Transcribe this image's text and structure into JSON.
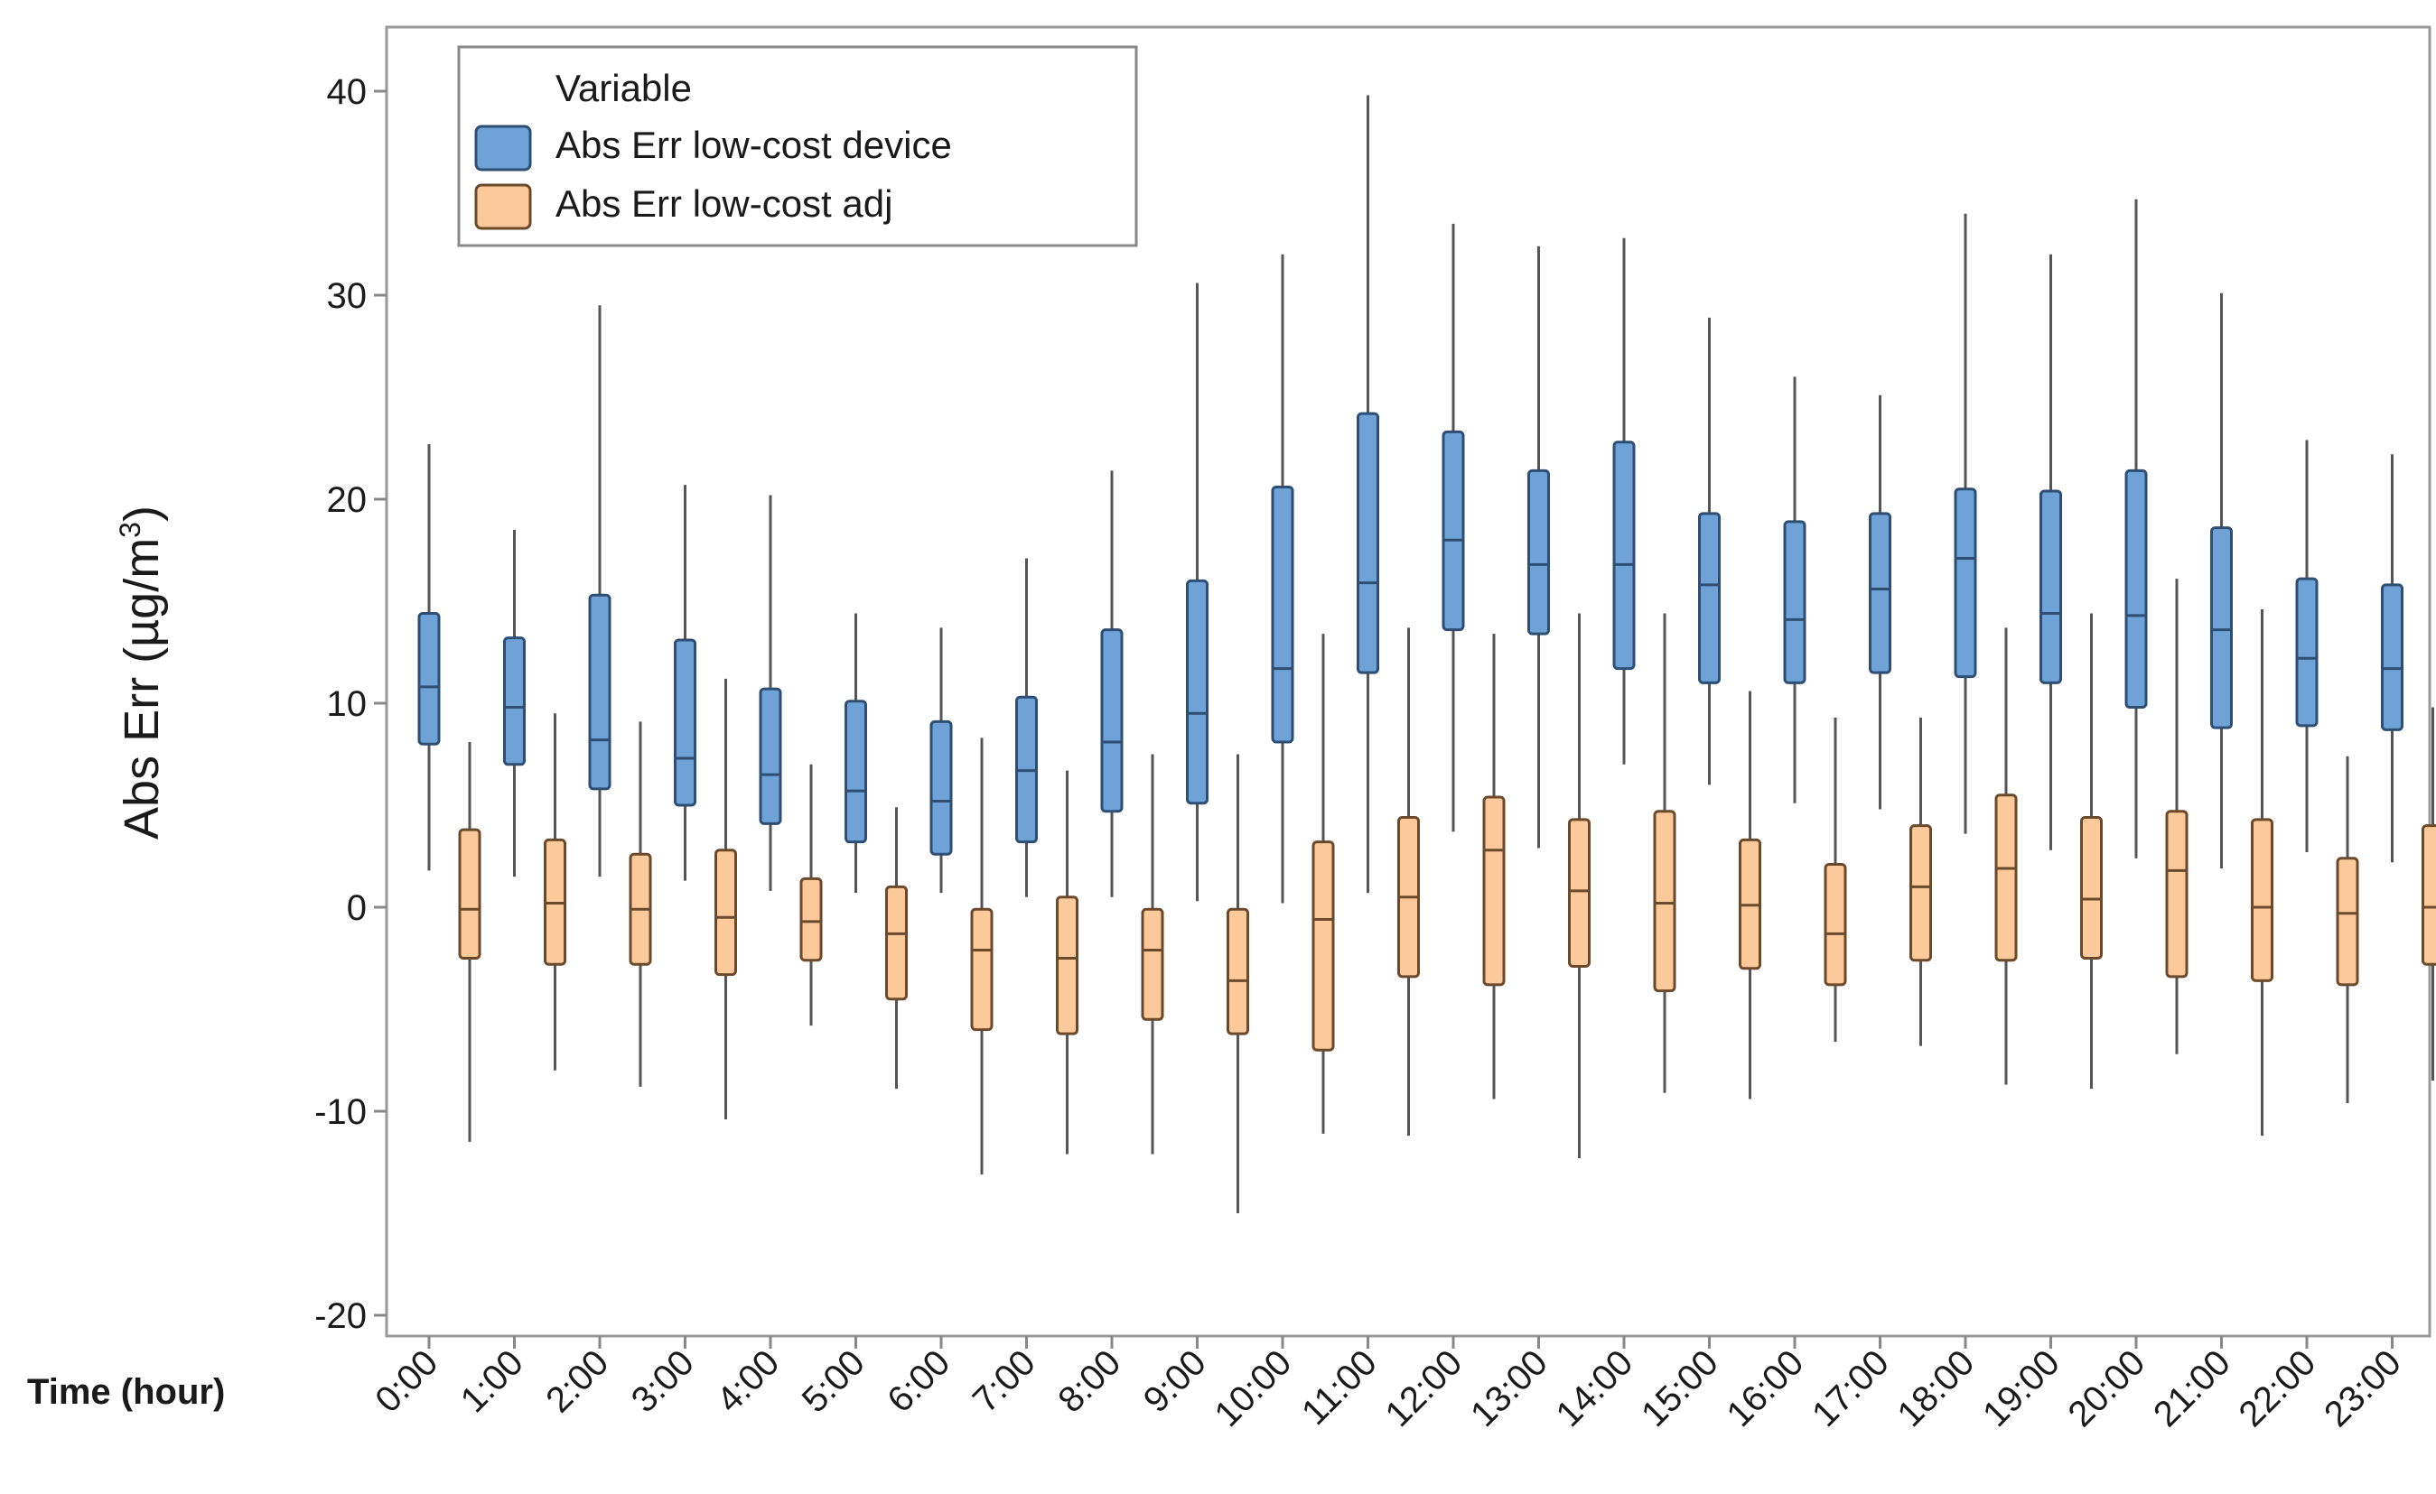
{
  "chart_data": {
    "type": "boxplot",
    "title": "",
    "xlabel": "Time (hour)",
    "ylabel": "Abs Err (µg/m³)",
    "ylabel_base": "Abs Err (µg/m",
    "ylabel_sup": "3",
    "ylabel_close": ")",
    "ylim": [
      -21,
      42
    ],
    "yticks": [
      "40",
      "30",
      "20",
      "10",
      "0",
      "-10",
      "-20"
    ],
    "ytick_values": [
      40,
      30,
      20,
      10,
      0,
      -10,
      -20
    ],
    "categories": [
      "0:00",
      "1:00",
      "2:00",
      "3:00",
      "4:00",
      "5:00",
      "6:00",
      "7:00",
      "8:00",
      "9:00",
      "10:00",
      "11:00",
      "12:00",
      "13:00",
      "14:00",
      "15:00",
      "16:00",
      "17:00",
      "18:00",
      "19:00",
      "20:00",
      "21:00",
      "22:00",
      "23:00"
    ],
    "legend": {
      "title": "Variable",
      "position": "top-left"
    },
    "colors": {
      "device_fill": "#6fa3d8",
      "device_edge": "#2e4f73",
      "adj_fill": "#fcc99b",
      "adj_edge": "#6b4a2c",
      "whisker": "#555555",
      "axis": "#888888"
    },
    "series": [
      {
        "name": "Abs Err low-cost device",
        "key": "device",
        "boxes": [
          {
            "min": 1.8,
            "q1": 8.0,
            "median": 10.8,
            "q3": 14.4,
            "max": 22.7
          },
          {
            "min": 1.5,
            "q1": 7.0,
            "median": 9.8,
            "q3": 13.2,
            "max": 18.5
          },
          {
            "min": 1.5,
            "q1": 5.8,
            "median": 8.2,
            "q3": 15.3,
            "max": 29.5
          },
          {
            "min": 1.3,
            "q1": 5.0,
            "median": 7.3,
            "q3": 13.1,
            "max": 20.7
          },
          {
            "min": 0.8,
            "q1": 4.1,
            "median": 6.5,
            "q3": 10.7,
            "max": 20.2
          },
          {
            "min": 0.7,
            "q1": 3.2,
            "median": 5.7,
            "q3": 10.1,
            "max": 14.4
          },
          {
            "min": 0.7,
            "q1": 2.6,
            "median": 5.2,
            "q3": 9.1,
            "max": 13.7
          },
          {
            "min": 0.5,
            "q1": 3.2,
            "median": 6.7,
            "q3": 10.3,
            "max": 17.1
          },
          {
            "min": 0.5,
            "q1": 4.7,
            "median": 8.1,
            "q3": 13.6,
            "max": 21.4
          },
          {
            "min": 0.3,
            "q1": 5.1,
            "median": 9.5,
            "q3": 16.0,
            "max": 30.6
          },
          {
            "min": 0.2,
            "q1": 8.1,
            "median": 11.7,
            "q3": 20.6,
            "max": 32.0
          },
          {
            "min": 0.7,
            "q1": 11.5,
            "median": 15.9,
            "q3": 24.2,
            "max": 39.8
          },
          {
            "min": 3.7,
            "q1": 13.6,
            "median": 18.0,
            "q3": 23.3,
            "max": 33.5
          },
          {
            "min": 2.9,
            "q1": 13.4,
            "median": 16.8,
            "q3": 21.4,
            "max": 32.4
          },
          {
            "min": 7.0,
            "q1": 11.7,
            "median": 16.8,
            "q3": 22.8,
            "max": 32.8
          },
          {
            "min": 6.0,
            "q1": 11.0,
            "median": 15.8,
            "q3": 19.3,
            "max": 28.9
          },
          {
            "min": 5.1,
            "q1": 11.0,
            "median": 14.1,
            "q3": 18.9,
            "max": 26.0
          },
          {
            "min": 4.8,
            "q1": 11.5,
            "median": 15.6,
            "q3": 19.3,
            "max": 25.1
          },
          {
            "min": 3.6,
            "q1": 11.3,
            "median": 17.1,
            "q3": 20.5,
            "max": 34.0
          },
          {
            "min": 2.8,
            "q1": 11.0,
            "median": 14.4,
            "q3": 20.4,
            "max": 32.0
          },
          {
            "min": 2.4,
            "q1": 9.8,
            "median": 14.3,
            "q3": 21.4,
            "max": 34.7
          },
          {
            "min": 1.9,
            "q1": 8.8,
            "median": 13.6,
            "q3": 18.6,
            "max": 30.1
          },
          {
            "min": 2.7,
            "q1": 8.9,
            "median": 12.2,
            "q3": 16.1,
            "max": 22.9
          },
          {
            "min": 2.2,
            "q1": 8.7,
            "median": 11.7,
            "q3": 15.8,
            "max": 22.2
          }
        ]
      },
      {
        "name": "Abs Err low-cost adj",
        "key": "adj",
        "boxes": [
          {
            "min": -11.5,
            "q1": -2.5,
            "median": -0.1,
            "q3": 3.8,
            "max": 8.1
          },
          {
            "min": -8.0,
            "q1": -2.8,
            "median": 0.2,
            "q3": 3.3,
            "max": 9.5
          },
          {
            "min": -8.8,
            "q1": -2.8,
            "median": -0.1,
            "q3": 2.6,
            "max": 9.1
          },
          {
            "min": -10.4,
            "q1": -3.3,
            "median": -0.5,
            "q3": 2.8,
            "max": 11.2
          },
          {
            "min": -5.8,
            "q1": -2.6,
            "median": -0.7,
            "q3": 1.4,
            "max": 7.0
          },
          {
            "min": -8.9,
            "q1": -4.5,
            "median": -1.3,
            "q3": 1.0,
            "max": 4.9
          },
          {
            "min": -13.1,
            "q1": -6.0,
            "median": -2.1,
            "q3": -0.1,
            "max": 8.3
          },
          {
            "min": -12.1,
            "q1": -6.2,
            "median": -2.5,
            "q3": 0.5,
            "max": 6.7
          },
          {
            "min": -12.1,
            "q1": -5.5,
            "median": -2.1,
            "q3": -0.1,
            "max": 7.5
          },
          {
            "min": -15.0,
            "q1": -6.2,
            "median": -3.6,
            "q3": -0.1,
            "max": 7.5
          },
          {
            "min": -11.1,
            "q1": -7.0,
            "median": -0.6,
            "q3": 3.2,
            "max": 13.4
          },
          {
            "min": -11.2,
            "q1": -3.4,
            "median": 0.5,
            "q3": 4.4,
            "max": 13.7
          },
          {
            "min": -9.4,
            "q1": -3.8,
            "median": 2.8,
            "q3": 5.4,
            "max": 13.4
          },
          {
            "min": -12.3,
            "q1": -2.9,
            "median": 0.8,
            "q3": 4.3,
            "max": 14.4
          },
          {
            "min": -9.1,
            "q1": -4.1,
            "median": 0.2,
            "q3": 4.7,
            "max": 14.4
          },
          {
            "min": -9.4,
            "q1": -3.0,
            "median": 0.1,
            "q3": 3.3,
            "max": 10.6
          },
          {
            "min": -6.6,
            "q1": -3.8,
            "median": -1.3,
            "q3": 2.1,
            "max": 9.3
          },
          {
            "min": -6.8,
            "q1": -2.6,
            "median": 1.0,
            "q3": 4.0,
            "max": 9.3
          },
          {
            "min": -8.7,
            "q1": -2.6,
            "median": 1.9,
            "q3": 5.5,
            "max": 13.7
          },
          {
            "min": -8.9,
            "q1": -2.5,
            "median": 0.4,
            "q3": 4.4,
            "max": 14.4
          },
          {
            "min": -7.2,
            "q1": -3.4,
            "median": 1.8,
            "q3": 4.7,
            "max": 16.1
          },
          {
            "min": -11.2,
            "q1": -3.6,
            "median": 0.0,
            "q3": 4.3,
            "max": 14.6
          },
          {
            "min": -9.6,
            "q1": -3.8,
            "median": -0.3,
            "q3": 2.4,
            "max": 7.4
          },
          {
            "min": -8.5,
            "q1": -2.8,
            "median": 0.0,
            "q3": 4.0,
            "max": 9.8
          }
        ]
      }
    ]
  }
}
